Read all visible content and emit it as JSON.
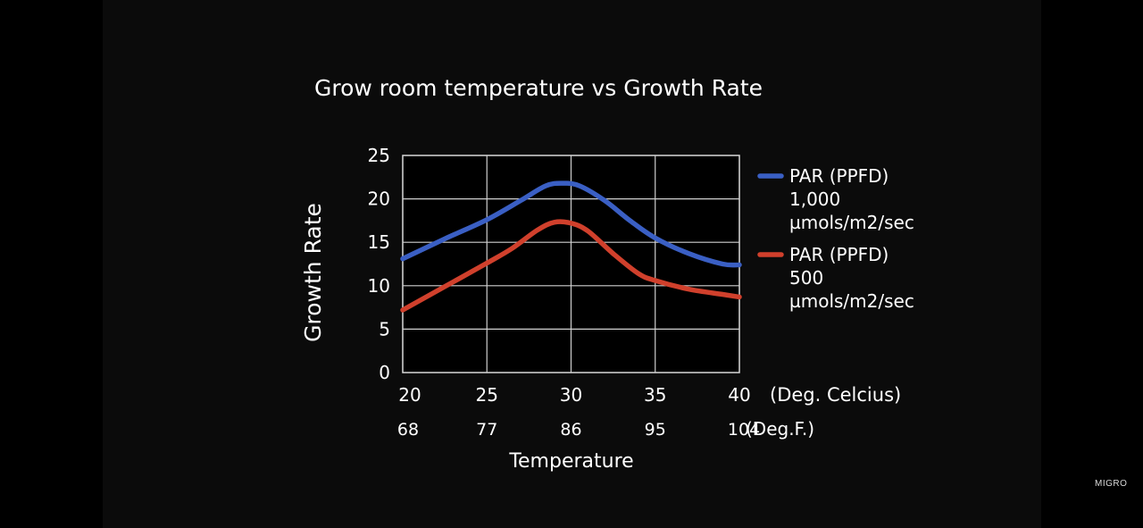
{
  "chart_data": {
    "type": "line",
    "title": "Grow room temperature vs Growth Rate",
    "ylabel": "Growth Rate",
    "xlabel": "Temperature",
    "ylim": [
      0,
      25
    ],
    "xlim": [
      20,
      40
    ],
    "yticks": [
      "0",
      "5",
      "10",
      "15",
      "20",
      "25"
    ],
    "x_celsius_ticks": [
      "20",
      "25",
      "30",
      "35",
      "40"
    ],
    "x_celsius_unit": "(Deg. Celcius)",
    "x_fahrenheit_ticks": [
      "68",
      "77",
      "86",
      "95",
      "104"
    ],
    "x_fahrenheit_unit": "(Deg.F.)",
    "grid": true,
    "legend_position": "right",
    "series": [
      {
        "name_lines": [
          "PAR (PPFD)",
          "1,000",
          "µmols/m2/sec"
        ],
        "color": "#3a5fc4",
        "points": [
          [
            20,
            13.1
          ],
          [
            22.5,
            15.4
          ],
          [
            25,
            17.6
          ],
          [
            27,
            19.8
          ],
          [
            28.5,
            21.5
          ],
          [
            29.5,
            21.8
          ],
          [
            30.5,
            21.5
          ],
          [
            32,
            19.8
          ],
          [
            33.5,
            17.5
          ],
          [
            35,
            15.5
          ],
          [
            37,
            13.7
          ],
          [
            39,
            12.5
          ],
          [
            40,
            12.4
          ]
        ]
      },
      {
        "name_lines": [
          "PAR (PPFD)",
          "500",
          "µmols/m2/sec"
        ],
        "color": "#d0402c",
        "points": [
          [
            20,
            7.2
          ],
          [
            22.5,
            9.9
          ],
          [
            25,
            12.6
          ],
          [
            26.5,
            14.3
          ],
          [
            28,
            16.4
          ],
          [
            29,
            17.3
          ],
          [
            30,
            17.2
          ],
          [
            31,
            16.3
          ],
          [
            32.5,
            13.7
          ],
          [
            34,
            11.4
          ],
          [
            35,
            10.6
          ],
          [
            37,
            9.6
          ],
          [
            39,
            9.0
          ],
          [
            40,
            8.7
          ]
        ]
      }
    ]
  },
  "watermark": "MIGRO"
}
